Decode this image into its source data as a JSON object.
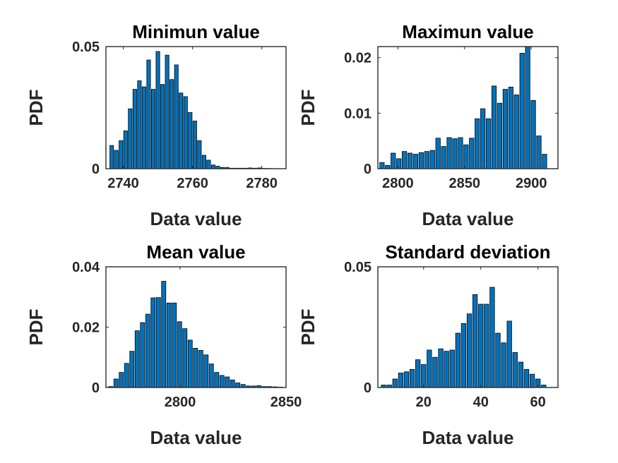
{
  "chart_data": [
    {
      "type": "bar",
      "title": "Minimun value",
      "xlabel": "Data value",
      "ylabel": "PDF",
      "xlim": [
        2735,
        2787
      ],
      "ylim": [
        0,
        0.05
      ],
      "xticks": [
        2740,
        2760,
        2780
      ],
      "yticks": [
        0,
        0.05
      ],
      "bin_start": 2736,
      "bin_width": 1.333,
      "values": [
        0.0095,
        0.0075,
        0.0115,
        0.0155,
        0.0245,
        0.0325,
        0.036,
        0.0335,
        0.0445,
        0.0325,
        0.048,
        0.0345,
        0.0465,
        0.0365,
        0.0425,
        0.031,
        0.0295,
        0.023,
        0.0195,
        0.0115,
        0.0055,
        0.0035,
        0.0015,
        0.001,
        0.0005,
        0.0005,
        0.0002,
        0.0002,
        0.0002,
        0.0002,
        0.0003,
        0.0002,
        0.0003,
        0.0001,
        0.0001
      ]
    },
    {
      "type": "bar",
      "title": "Maximun value",
      "xlabel": "Data value",
      "ylabel": "PDF",
      "xlim": [
        2785,
        2920
      ],
      "ylim": [
        0,
        0.022
      ],
      "xticks": [
        2800,
        2850,
        2900
      ],
      "yticks": [
        0,
        0.01,
        0.02
      ],
      "bin_start": 2786,
      "bin_width": 4.2,
      "values": [
        0.0011,
        0.0006,
        0.0028,
        0.0018,
        0.0031,
        0.0028,
        0.0026,
        0.0029,
        0.0031,
        0.0033,
        0.0055,
        0.004,
        0.0056,
        0.0054,
        0.0056,
        0.0043,
        0.0055,
        0.009,
        0.0108,
        0.009,
        0.0149,
        0.0118,
        0.0143,
        0.0147,
        0.0133,
        0.0208,
        0.0221,
        0.0123,
        0.0059,
        0.0026
      ]
    },
    {
      "type": "bar",
      "title": "Mean value",
      "xlabel": "Data value",
      "ylabel": "PDF",
      "xlim": [
        2765,
        2850
      ],
      "ylim": [
        0,
        0.04
      ],
      "xticks": [
        2800,
        2850
      ],
      "yticks": [
        0,
        0.02,
        0.04
      ],
      "bin_start": 2766,
      "bin_width": 2.5,
      "values": [
        0.0003,
        0.0028,
        0.005,
        0.008,
        0.012,
        0.0188,
        0.0215,
        0.0243,
        0.0297,
        0.0298,
        0.0352,
        0.028,
        0.028,
        0.0218,
        0.0195,
        0.0157,
        0.013,
        0.0123,
        0.0108,
        0.0078,
        0.005,
        0.004,
        0.0035,
        0.0025,
        0.0015,
        0.001,
        0.0005,
        0.0005,
        0.0006,
        0.0003,
        0.0003,
        0.0002,
        0.0001
      ]
    },
    {
      "type": "bar",
      "title": "Standard deviation",
      "xlabel": "Data value",
      "ylabel": "PDF",
      "xlim": [
        4,
        67
      ],
      "ylim": [
        0,
        0.05
      ],
      "xticks": [
        20,
        40,
        60
      ],
      "yticks": [
        0,
        0.05
      ],
      "bin_start": 5,
      "bin_width": 2,
      "values": [
        0.001,
        0.001,
        0.0035,
        0.006,
        0.0065,
        0.0075,
        0.0115,
        0.0095,
        0.0155,
        0.0125,
        0.016,
        0.015,
        0.0155,
        0.0225,
        0.0265,
        0.0305,
        0.0385,
        0.0345,
        0.0345,
        0.0415,
        0.0225,
        0.0185,
        0.0275,
        0.0145,
        0.0105,
        0.0075,
        0.0055,
        0.0035,
        0.001
      ]
    }
  ]
}
